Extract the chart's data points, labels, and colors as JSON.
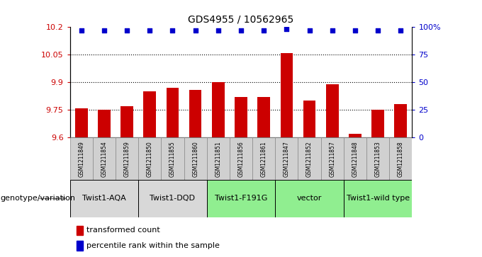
{
  "title": "GDS4955 / 10562965",
  "samples": [
    "GSM1211849",
    "GSM1211854",
    "GSM1211859",
    "GSM1211850",
    "GSM1211855",
    "GSM1211860",
    "GSM1211851",
    "GSM1211856",
    "GSM1211861",
    "GSM1211847",
    "GSM1211852",
    "GSM1211857",
    "GSM1211848",
    "GSM1211853",
    "GSM1211858"
  ],
  "bar_values": [
    9.76,
    9.75,
    9.77,
    9.85,
    9.87,
    9.86,
    9.9,
    9.82,
    9.82,
    10.06,
    9.8,
    9.89,
    9.62,
    9.75,
    9.78
  ],
  "blue_dot_values": [
    97,
    97,
    97,
    97,
    97,
    97,
    97,
    97,
    97,
    98,
    97,
    97,
    97,
    97,
    97
  ],
  "bar_color": "#cc0000",
  "dot_color": "#0000cc",
  "ymin": 9.6,
  "ymax": 10.2,
  "yticks": [
    9.6,
    9.75,
    9.9,
    10.05,
    10.2
  ],
  "ytick_labels": [
    "9.6",
    "9.75",
    "9.9",
    "10.05",
    "10.2"
  ],
  "right_yticks": [
    0,
    25,
    50,
    75,
    100
  ],
  "right_ytick_labels": [
    "0",
    "25",
    "50",
    "75",
    "100%"
  ],
  "groups": [
    {
      "label": "Twist1-AQA",
      "start": 0,
      "end": 3,
      "color": "#d8d8d8"
    },
    {
      "label": "Twist1-DQD",
      "start": 3,
      "end": 6,
      "color": "#d8d8d8"
    },
    {
      "label": "Twist1-F191G",
      "start": 6,
      "end": 9,
      "color": "#90ee90"
    },
    {
      "label": "vector",
      "start": 9,
      "end": 12,
      "color": "#90ee90"
    },
    {
      "label": "Twist1-wild type",
      "start": 12,
      "end": 15,
      "color": "#90ee90"
    }
  ],
  "legend_items": [
    {
      "label": "transformed count",
      "color": "#cc0000"
    },
    {
      "label": "percentile rank within the sample",
      "color": "#0000cc"
    }
  ],
  "genotype_label": "genotype/variation",
  "axis_label_color_left": "#cc0000",
  "axis_label_color_right": "#0000cc",
  "sample_box_color": "#d0d0d0",
  "sample_box_edge": "#888888"
}
